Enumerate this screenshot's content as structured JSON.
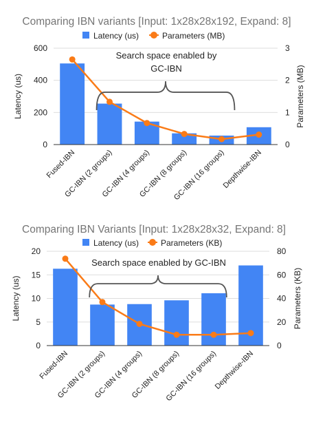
{
  "colors": {
    "bar": "#4285f4",
    "line": "#fa7b17",
    "grid": "#dddddd",
    "axis": "#333333",
    "brace": "#555555"
  },
  "chart_data": [
    {
      "type": "bar+line",
      "title": "Comparing IBN variants [Input: 1x28x28x192, Expand: 8]",
      "legend": [
        "Latency (us)",
        "Parameters (MB)"
      ],
      "legend_position": "top",
      "ylabel": "Latency (us)",
      "y2label": "Parameters (MB)",
      "ylim": [
        0,
        600
      ],
      "yticks": [
        0,
        200,
        400,
        600
      ],
      "y2lim": [
        0,
        3
      ],
      "y2ticks": [
        0,
        1,
        2,
        3
      ],
      "grid": true,
      "categories": [
        "Fused-IBN",
        "GC-IBN (2 groups)",
        "GC-IBN (4 groups)",
        "GC-IBN (8 groups)",
        "GC-IBN (16 groups)",
        "Depthwise-IBN"
      ],
      "series": [
        {
          "name": "Latency (us)",
          "type": "bar",
          "axis": "left",
          "values": [
            505,
            255,
            143,
            70,
            56,
            108
          ]
        },
        {
          "name": "Parameters (MB)",
          "type": "line",
          "axis": "right",
          "values": [
            2.65,
            1.33,
            0.67,
            0.33,
            0.17,
            0.31
          ]
        }
      ],
      "annotation": {
        "lines": [
          "Search space enabled by",
          "GC-IBN"
        ],
        "brace_from": 1,
        "brace_to": 4
      }
    },
    {
      "type": "bar+line",
      "title": "Comparing IBN Variants [Input: 1x28x28x32, Expand: 8]",
      "legend": [
        "Latency (us)",
        "Parameters (KB)"
      ],
      "legend_position": "top",
      "ylabel": "Latency (us)",
      "y2label": "Parameters (KB)",
      "ylim": [
        0,
        20
      ],
      "yticks": [
        0,
        5,
        10,
        15,
        20
      ],
      "y2lim": [
        0,
        80
      ],
      "y2ticks": [
        0,
        20,
        40,
        60,
        80
      ],
      "grid": true,
      "categories": [
        "Fused-IBN",
        "GC-IBN (2 groups)",
        "GC-IBN (4 groups)",
        "GC-IBN (8 groups)",
        "GC-IBN (16 groups)",
        "Depthwise-IBN"
      ],
      "series": [
        {
          "name": "Latency (us)",
          "type": "bar",
          "axis": "left",
          "values": [
            16.3,
            8.7,
            8.8,
            9.6,
            11.1,
            17.0
          ]
        },
        {
          "name": "Parameters (KB)",
          "type": "line",
          "axis": "right",
          "values": [
            73.7,
            36.9,
            18.4,
            9.2,
            9.2,
            10.6
          ]
        }
      ],
      "annotation": {
        "lines": [
          "Search space enabled by GC-IBN"
        ],
        "brace_from": 1,
        "brace_to": 4
      }
    }
  ]
}
